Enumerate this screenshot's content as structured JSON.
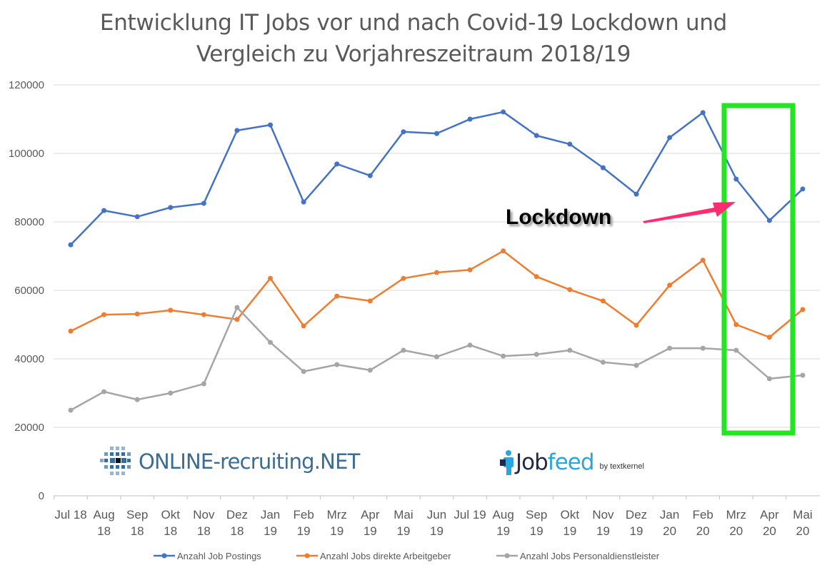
{
  "chart_data": {
    "type": "line",
    "title": [
      "Entwicklung IT Jobs vor und nach Covid-19 Lockdown und",
      "Vergleich zu Vorjahreszeitraum 2018/19"
    ],
    "categories": [
      [
        "Jul 18"
      ],
      [
        "Aug",
        "18"
      ],
      [
        "Sep",
        "18"
      ],
      [
        "Okt",
        "18"
      ],
      [
        "Nov",
        "18"
      ],
      [
        "Dez",
        "18"
      ],
      [
        "Jan",
        "19"
      ],
      [
        "Feb",
        "19"
      ],
      [
        "Mrz",
        "19"
      ],
      [
        "Apr",
        "19"
      ],
      [
        "Mai",
        "19"
      ],
      [
        "Jun",
        "19"
      ],
      [
        "Jul 19"
      ],
      [
        "Aug",
        "19"
      ],
      [
        "Sep",
        "19"
      ],
      [
        "Okt",
        "19"
      ],
      [
        "Nov",
        "19"
      ],
      [
        "Dez",
        "19"
      ],
      [
        "Jan",
        "20"
      ],
      [
        "Feb",
        "20"
      ],
      [
        "Mrz",
        "20"
      ],
      [
        "Apr",
        "20"
      ],
      [
        "Mai",
        "20"
      ]
    ],
    "ylim": [
      0,
      120000
    ],
    "yticks": [
      "0",
      "20000",
      "40000",
      "60000",
      "80000",
      "100000",
      "120000"
    ],
    "grid": true,
    "legend": "bottom",
    "series": [
      {
        "name": "Anzahl Job Postings",
        "color": "#4472c4",
        "values": [
          73300,
          83300,
          81500,
          84200,
          85400,
          106700,
          108300,
          85800,
          96900,
          93500,
          106300,
          105800,
          110000,
          112100,
          105200,
          102700,
          95800,
          88100,
          104600,
          111900,
          92500,
          80400,
          89600
        ]
      },
      {
        "name": "Anzahl Jobs direkte Arbeitgeber",
        "color": "#ed7d31",
        "values": [
          48100,
          52900,
          53100,
          54200,
          52900,
          51500,
          63500,
          49600,
          58300,
          56900,
          63500,
          65200,
          66000,
          71500,
          64000,
          60200,
          56900,
          49800,
          61500,
          68800,
          50000,
          46300,
          54400
        ]
      },
      {
        "name": "Anzahl Jobs Personaldienstleister",
        "color": "#a5a5a5",
        "values": [
          25000,
          30400,
          28100,
          30000,
          32700,
          55000,
          44800,
          36300,
          38300,
          36700,
          42500,
          40600,
          44000,
          40800,
          41300,
          42500,
          39000,
          38100,
          43100,
          43100,
          42500,
          34200,
          35200
        ]
      }
    ],
    "annotations": {
      "lockdown_label": "Lockdown",
      "highlight_color": "#22e622",
      "arrow_color": "#ff2d6f"
    }
  },
  "logos": {
    "left": "ONLINE-recruiting.NET",
    "right_main_a": "Job",
    "right_main_b": "feed",
    "right_sub": "by textkernel"
  }
}
